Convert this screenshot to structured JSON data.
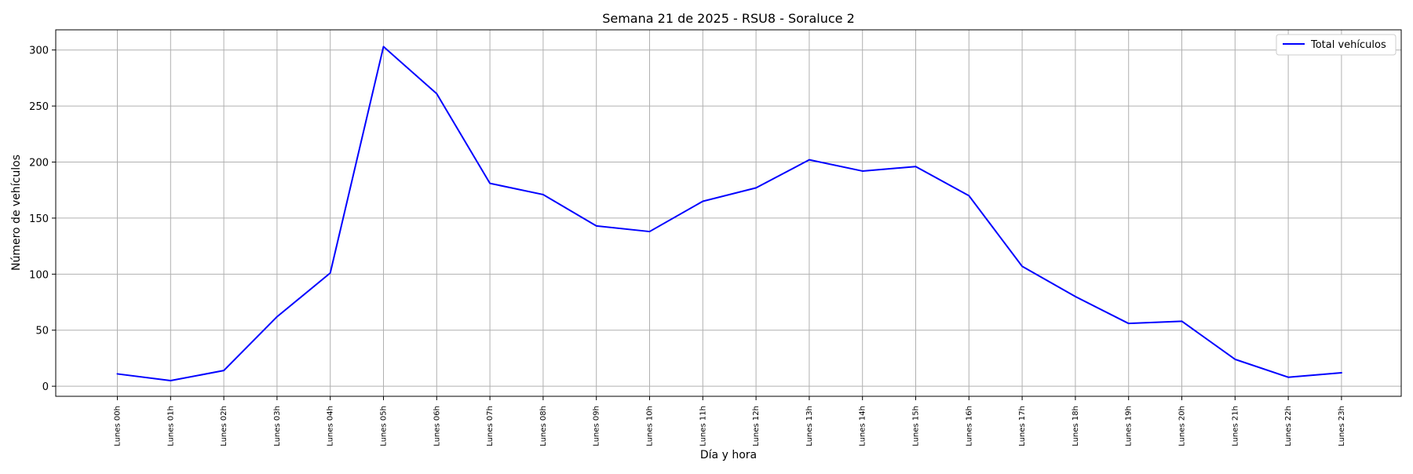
{
  "chart_data": {
    "type": "line",
    "title": "Semana 21 de 2025 - RSU8 - Soraluce 2",
    "xlabel": "Día y hora",
    "ylabel": "Número de vehículos",
    "categories": [
      "Lunes 00h",
      "Lunes 01h",
      "Lunes 02h",
      "Lunes 03h",
      "Lunes 04h",
      "Lunes 05h",
      "Lunes 06h",
      "Lunes 07h",
      "Lunes 08h",
      "Lunes 09h",
      "Lunes 10h",
      "Lunes 11h",
      "Lunes 12h",
      "Lunes 13h",
      "Lunes 14h",
      "Lunes 15h",
      "Lunes 16h",
      "Lunes 17h",
      "Lunes 18h",
      "Lunes 19h",
      "Lunes 20h",
      "Lunes 21h",
      "Lunes 22h",
      "Lunes 23h"
    ],
    "series": [
      {
        "name": "Total vehículos",
        "color": "#0000ff",
        "values": [
          11,
          5,
          14,
          62,
          101,
          303,
          261,
          181,
          171,
          143,
          138,
          165,
          177,
          202,
          192,
          196,
          170,
          107,
          80,
          56,
          58,
          24,
          8,
          12
        ]
      }
    ],
    "yticks": [
      0,
      50,
      100,
      150,
      200,
      250,
      300
    ],
    "ylim": [
      -9,
      318
    ],
    "grid": true,
    "legend_position": "top-right"
  }
}
